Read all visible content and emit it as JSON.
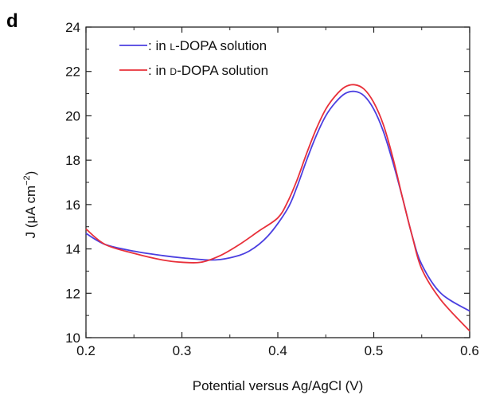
{
  "panel_label": "d",
  "chart_data": {
    "type": "line",
    "title": "",
    "xlabel": "Potential versus Ag/AgCl (V)",
    "ylabel_parts": {
      "prefix": "J (",
      "mu": "μ",
      "unit": "A cm",
      "exponent": "−2",
      "suffix": ")"
    },
    "xlim": [
      0.2,
      0.6
    ],
    "ylim": [
      10,
      24
    ],
    "x_ticks": [
      0.2,
      0.3,
      0.4,
      0.5,
      0.6
    ],
    "x_tick_labels": [
      "0.2",
      "0.3",
      "0.4",
      "0.5",
      "0.6"
    ],
    "y_ticks": [
      10,
      12,
      14,
      16,
      18,
      20,
      22,
      24
    ],
    "y_tick_labels": [
      "10",
      "12",
      "14",
      "16",
      "18",
      "20",
      "22",
      "24"
    ],
    "grid": false,
    "legend_position": "top-left",
    "series": [
      {
        "name": ": in L-DOPA solution",
        "name_prefix": ": in ",
        "name_small_caps": "l",
        "name_suffix": "-DOPA solution",
        "color": "#4b3fe0",
        "x": [
          0.2,
          0.22,
          0.25,
          0.28,
          0.3,
          0.33,
          0.35,
          0.37,
          0.39,
          0.41,
          0.42,
          0.43,
          0.44,
          0.45,
          0.46,
          0.47,
          0.48,
          0.49,
          0.5,
          0.51,
          0.52,
          0.53,
          0.54,
          0.55,
          0.57,
          0.6
        ],
        "y": [
          14.7,
          14.2,
          13.9,
          13.7,
          13.6,
          13.5,
          13.6,
          13.9,
          14.6,
          15.8,
          16.8,
          18.0,
          19.1,
          20.0,
          20.6,
          21.0,
          21.1,
          20.9,
          20.3,
          19.3,
          17.9,
          16.3,
          14.6,
          13.3,
          12.0,
          11.2
        ]
      },
      {
        "name": ": in D-DOPA solution",
        "name_prefix": ": in ",
        "name_small_caps": "d",
        "name_suffix": "-DOPA solution",
        "color": "#e8303a",
        "x": [
          0.2,
          0.22,
          0.25,
          0.28,
          0.3,
          0.32,
          0.34,
          0.36,
          0.38,
          0.4,
          0.41,
          0.42,
          0.43,
          0.44,
          0.45,
          0.46,
          0.47,
          0.48,
          0.49,
          0.5,
          0.51,
          0.52,
          0.53,
          0.54,
          0.55,
          0.57,
          0.6
        ],
        "y": [
          14.9,
          14.2,
          13.8,
          13.5,
          13.4,
          13.4,
          13.7,
          14.2,
          14.8,
          15.4,
          16.1,
          17.1,
          18.3,
          19.4,
          20.3,
          20.9,
          21.3,
          21.4,
          21.2,
          20.6,
          19.6,
          18.1,
          16.3,
          14.6,
          13.1,
          11.7,
          10.3
        ]
      }
    ]
  }
}
